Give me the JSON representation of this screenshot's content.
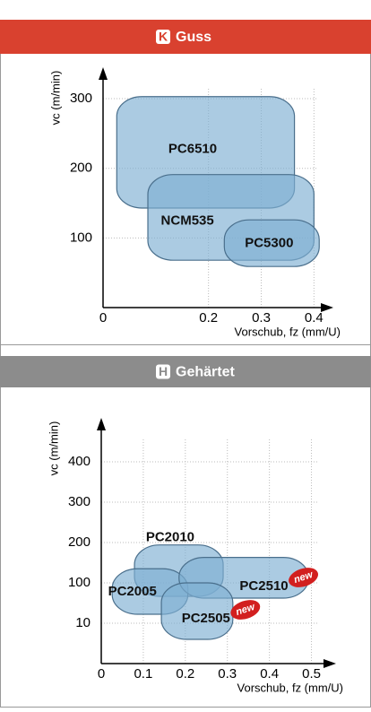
{
  "chart_data": [
    {
      "type": "region",
      "header_icon": "K",
      "title": "Guss",
      "header_color": "#d9412f",
      "ylabel": "vc (m/min)",
      "xlabel": "Vorschub, fz (mm/U)",
      "xlim": [
        0,
        0.43
      ],
      "xticks": [
        0,
        0.2,
        0.3,
        0.4
      ],
      "ylim": [
        0,
        340
      ],
      "yticks": [
        100,
        200,
        300
      ],
      "grid": true,
      "color": "#7eafd3",
      "regions": [
        {
          "name": "PC6510",
          "x": [
            0.026,
            0.363
          ],
          "y": [
            143,
            303
          ],
          "label_x": 0.17,
          "label_y": 227
        },
        {
          "name": "NCM535",
          "x": [
            0.085,
            0.4
          ],
          "y": [
            68,
            191
          ],
          "label_x": 0.16,
          "label_y": 124
        },
        {
          "name": "PC5300",
          "x": [
            0.23,
            0.41
          ],
          "y": [
            59,
            126
          ],
          "label_x": 0.315,
          "label_y": 92
        }
      ]
    },
    {
      "type": "region",
      "header_icon": "H",
      "title": "Gehärtet",
      "header_color": "#8c8c8c",
      "ylabel": "vc (m/min)",
      "xlabel": "Vorschub, fz (mm/U)",
      "xlim": [
        0,
        0.55
      ],
      "xticks": [
        0,
        0.1,
        0.2,
        0.3,
        0.4,
        0.5
      ],
      "ylim": [
        0,
        500
      ],
      "yticks": [
        10,
        100,
        200,
        300,
        400
      ],
      "yscale": "tick-spaced",
      "grid": true,
      "color": "#7eafd3",
      "regions": [
        {
          "name": "PC2010",
          "x": [
            0.079,
            0.29
          ],
          "y": [
            70,
            194
          ],
          "label_x": 0.164,
          "label_y": 212
        },
        {
          "name": "PC2005",
          "x": [
            0.026,
            0.206
          ],
          "y": [
            30,
            135
          ],
          "label_x": 0.074,
          "label_y": 80
        },
        {
          "name": "PC2510",
          "x": [
            0.185,
            0.493
          ],
          "y": [
            66,
            163
          ],
          "label_x": 0.387,
          "label_y": 92,
          "badge": "new"
        },
        {
          "name": "PC2505",
          "x": [
            0.143,
            0.313
          ],
          "y": [
            6,
            100
          ],
          "label_x": 0.249,
          "label_y": 20,
          "badge": "new"
        }
      ]
    }
  ]
}
